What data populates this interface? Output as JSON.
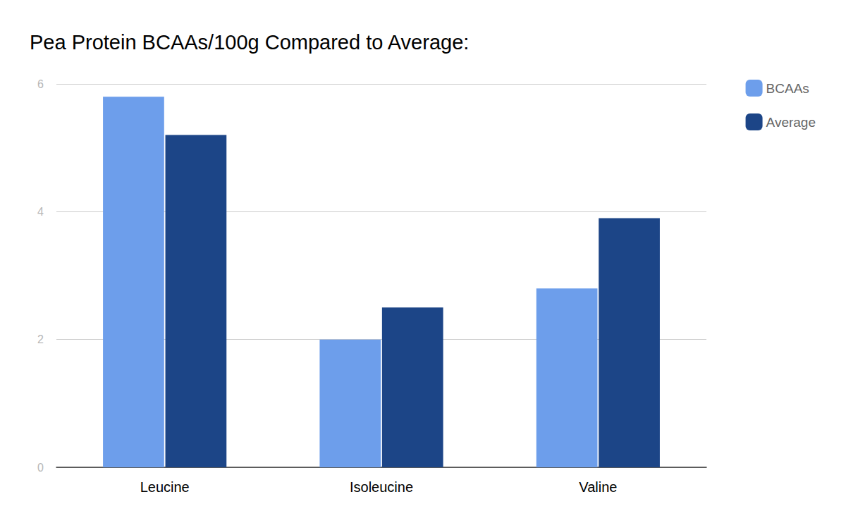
{
  "chart_data": {
    "type": "bar",
    "title": "Pea Protein BCAAs/100g Compared to Average:",
    "categories": [
      "Leucine",
      "Isoleucine",
      "Valine"
    ],
    "series": [
      {
        "name": "BCAAs",
        "color": "#6d9eeb",
        "values": [
          5.8,
          2.0,
          2.8
        ]
      },
      {
        "name": "Average",
        "color": "#1c4587",
        "values": [
          5.2,
          2.5,
          3.9
        ]
      }
    ],
    "ylim": [
      0,
      6
    ],
    "yticks": [
      0,
      2,
      4,
      6
    ],
    "grid": true,
    "legend": "top-right"
  }
}
